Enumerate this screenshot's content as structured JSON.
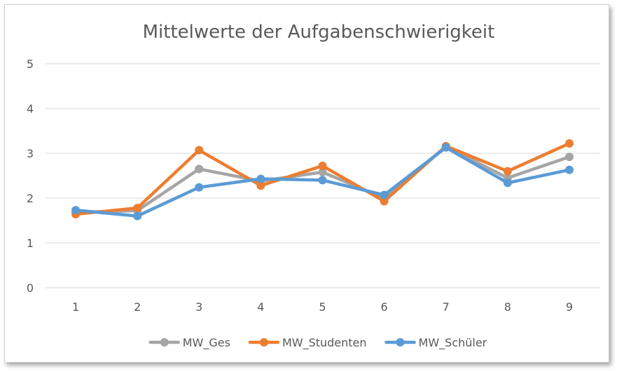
{
  "chart_data": {
    "type": "line",
    "title": "Mittelwerte der Aufgabenschwierigkeit",
    "xlabel": "",
    "ylabel": "",
    "x": [
      1,
      2,
      3,
      4,
      5,
      6,
      7,
      8,
      9
    ],
    "ylim": [
      0,
      5
    ],
    "yticks": [
      0,
      1,
      2,
      3,
      4,
      5
    ],
    "grid": true,
    "legend_position": "bottom",
    "series": [
      {
        "name": "MW_Ges",
        "color": "#a5a5a5",
        "values": [
          1.68,
          1.72,
          2.65,
          2.38,
          2.58,
          2.0,
          3.15,
          2.45,
          2.92
        ]
      },
      {
        "name": "MW_Studenten",
        "color": "#ed7d31",
        "values": [
          1.64,
          1.78,
          3.07,
          2.28,
          2.72,
          1.93,
          3.16,
          2.6,
          3.22
        ]
      },
      {
        "name": "MW_Schüler",
        "color": "#5b9bd5",
        "values": [
          1.73,
          1.6,
          2.24,
          2.43,
          2.4,
          2.07,
          3.13,
          2.34,
          2.63
        ]
      }
    ]
  }
}
